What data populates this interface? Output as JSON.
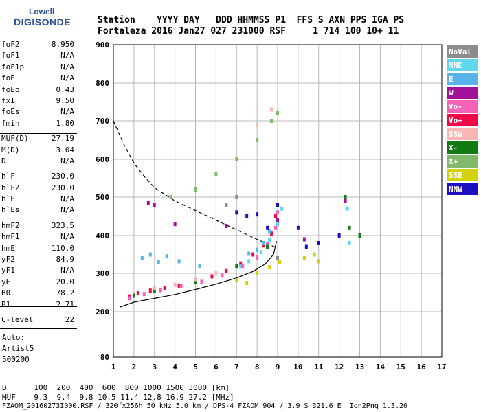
{
  "logo": {
    "line1": "Lowell",
    "line2": "DIGISONDE"
  },
  "header": {
    "line1": "Station    YYYY DAY   DDD HHMMSS P1  FFS S AXN PPS IGA PS",
    "line2": "Fortaleza 2016 Jan27 027 231000 RSF     1 714 100 10+ 11"
  },
  "params": [
    {
      "k": "foF2",
      "v": "8.950"
    },
    {
      "k": "foF1",
      "v": "N/A"
    },
    {
      "k": "foF1p",
      "v": "N/A"
    },
    {
      "k": "foE",
      "v": "N/A"
    },
    {
      "k": "foEp",
      "v": "0.43"
    },
    {
      "k": "fxI",
      "v": "9.50"
    },
    {
      "k": "foEs",
      "v": "N/A"
    },
    {
      "k": "fmin",
      "v": "1.80"
    },
    {
      "k": "MUF(D)",
      "v": "27.19"
    },
    {
      "k": "M(D)",
      "v": "3.04"
    },
    {
      "k": "D",
      "v": "N/A"
    },
    {
      "k": "h`F",
      "v": "230.0"
    },
    {
      "k": "h`F2",
      "v": "230.0"
    },
    {
      "k": "h`E",
      "v": "N/A"
    },
    {
      "k": "h`Es",
      "v": "N/A"
    },
    {
      "k": "hmF2",
      "v": "323.5"
    },
    {
      "k": "hmF1",
      "v": "N/A"
    },
    {
      "k": "hmE",
      "v": "110.0"
    },
    {
      "k": "yF2",
      "v": "84.9"
    },
    {
      "k": "yF1",
      "v": "N/A"
    },
    {
      "k": "yE",
      "v": "20.0"
    },
    {
      "k": "B0",
      "v": "78.2"
    },
    {
      "k": "B1",
      "v": "2.71"
    },
    {
      "k": "C-level",
      "v": "22"
    }
  ],
  "auto": [
    "Auto:",
    "Artist5",
    "500200"
  ],
  "footer": {
    "d_line": "D      100  200  400  600  800 1000 1500 3000 [km]",
    "muf_line": "MUF    9.3  9.4  9.8 10.5 11.4 12.8 16.9 27.2 [MHz]",
    "file_line": "FZAOM_20160273I000.RSF / 320fx256h 50 kHz 5.0 km / DPS-4 FZAOM 904 / 3.9 S 321.6 E  Ion2Png 1.3.20"
  },
  "legend": [
    {
      "label": "NoVal",
      "color": "#8c8c8c"
    },
    {
      "label": "NNE",
      "color": "#5fd8ec"
    },
    {
      "label": "E",
      "color": "#56b4ea"
    },
    {
      "label": "W",
      "color": "#a3119a"
    },
    {
      "label": "Vo-",
      "color": "#f562b8"
    },
    {
      "label": "Vo+",
      "color": "#ee0a4a"
    },
    {
      "label": "SSW",
      "color": "#fab5b5"
    },
    {
      "label": "X-",
      "color": "#127a12"
    },
    {
      "label": "X+",
      "color": "#82b86a"
    },
    {
      "label": "SSE",
      "color": "#d2d20e"
    },
    {
      "label": "NNW",
      "color": "#1c10c2"
    }
  ],
  "chart_data": {
    "type": "scatter",
    "xlim": [
      1,
      17
    ],
    "ylim": [
      80,
      900
    ],
    "x_ticks": [
      1,
      2,
      3,
      4,
      5,
      6,
      7,
      8,
      9,
      10,
      11,
      12,
      13,
      14,
      15,
      16,
      17
    ],
    "y_ticks": [
      80,
      200,
      300,
      400,
      500,
      600,
      700,
      800,
      900
    ],
    "grid": true,
    "legend_position": "right",
    "series": [
      {
        "name": "Vo+",
        "color": "#ee0a4a",
        "points": [
          [
            1.8,
            240
          ],
          [
            2.2,
            248
          ],
          [
            2.8,
            255
          ],
          [
            3.5,
            262
          ],
          [
            4.2,
            268
          ],
          [
            5,
            278
          ],
          [
            5.8,
            292
          ],
          [
            6.5,
            306
          ],
          [
            7.2,
            326
          ],
          [
            7.8,
            350
          ],
          [
            8.3,
            374
          ],
          [
            8.7,
            405
          ],
          [
            8.9,
            450
          ],
          [
            9.0,
            480
          ]
        ]
      },
      {
        "name": "NNE",
        "color": "#5fd8ec",
        "points": [
          [
            7.2,
            318
          ],
          [
            7.6,
            332
          ],
          [
            8.2,
            356
          ],
          [
            8.6,
            388
          ],
          [
            9.0,
            430
          ],
          [
            9.2,
            470
          ],
          [
            12.4,
            470
          ],
          [
            12.5,
            380
          ]
        ]
      },
      {
        "name": "E",
        "color": "#56b4ea",
        "points": [
          [
            2.4,
            340
          ],
          [
            2.8,
            350
          ],
          [
            3.2,
            330
          ],
          [
            3.6,
            345
          ],
          [
            4.2,
            332
          ],
          [
            5.2,
            320
          ],
          [
            7.6,
            352
          ],
          [
            8.0,
            362
          ],
          [
            8.3,
            380
          ],
          [
            8.6,
            410
          ]
        ]
      },
      {
        "name": "Vo-",
        "color": "#f562b8",
        "points": [
          [
            1.8,
            235
          ],
          [
            2.5,
            246
          ],
          [
            3.3,
            256
          ],
          [
            4.3,
            266
          ],
          [
            5.3,
            278
          ],
          [
            6.3,
            294
          ],
          [
            7.3,
            318
          ],
          [
            8.0,
            342
          ],
          [
            8.5,
            378
          ],
          [
            8.9,
            420
          ],
          [
            9.0,
            460
          ]
        ]
      },
      {
        "name": "W",
        "color": "#a3119a",
        "points": [
          [
            2.7,
            485
          ],
          [
            3.0,
            480
          ],
          [
            4.0,
            430
          ],
          [
            6.5,
            425
          ],
          [
            9.0,
            440
          ],
          [
            10.3,
            390
          ],
          [
            12.3,
            490
          ]
        ]
      },
      {
        "name": "X-",
        "color": "#127a12",
        "points": [
          [
            2.0,
            242
          ],
          [
            3.0,
            255
          ],
          [
            5.0,
            278
          ],
          [
            7.0,
            318
          ],
          [
            8.5,
            370
          ],
          [
            12.5,
            420
          ],
          [
            12.3,
            500
          ],
          [
            13.0,
            400
          ]
        ]
      },
      {
        "name": "X+",
        "color": "#82b86a",
        "points": [
          [
            3.8,
            500
          ],
          [
            5.0,
            520
          ],
          [
            6.0,
            560
          ],
          [
            7.0,
            600
          ],
          [
            8.0,
            650
          ],
          [
            8.7,
            700
          ],
          [
            9.0,
            720
          ]
        ]
      },
      {
        "name": "SSE",
        "color": "#d2d20e",
        "points": [
          [
            7.0,
            282
          ],
          [
            7.5,
            275
          ],
          [
            8.0,
            300
          ],
          [
            8.6,
            316
          ],
          [
            9.1,
            330
          ],
          [
            10.3,
            340
          ],
          [
            10.8,
            350
          ],
          [
            11.0,
            332
          ]
        ]
      },
      {
        "name": "SSW",
        "color": "#fab5b5",
        "points": [
          [
            3.0,
            262
          ],
          [
            4.0,
            270
          ],
          [
            5.0,
            285
          ],
          [
            6.0,
            300
          ],
          [
            8.0,
            690
          ],
          [
            8.7,
            730
          ]
        ]
      },
      {
        "name": "NNW",
        "color": "#1c10c2",
        "points": [
          [
            7.0,
            460
          ],
          [
            7.5,
            450
          ],
          [
            8.0,
            455
          ],
          [
            8.5,
            420
          ],
          [
            9.0,
            480
          ],
          [
            10.0,
            420
          ],
          [
            10.4,
            370
          ],
          [
            11.0,
            380
          ],
          [
            12.0,
            400
          ]
        ]
      },
      {
        "name": "NoVal",
        "color": "#8c8c8c",
        "points": [
          [
            6.5,
            480
          ],
          [
            7.0,
            500
          ],
          [
            9.0,
            340
          ]
        ]
      }
    ],
    "curves": [
      {
        "name": "profile",
        "style": "solid",
        "points": [
          [
            1.3,
            212
          ],
          [
            2,
            225
          ],
          [
            3,
            235
          ],
          [
            4,
            245
          ],
          [
            5,
            258
          ],
          [
            6,
            272
          ],
          [
            7,
            288
          ],
          [
            7.8,
            305
          ],
          [
            8.4,
            325
          ],
          [
            8.8,
            350
          ],
          [
            8.95,
            385
          ]
        ]
      },
      {
        "name": "muf",
        "style": "dashed",
        "points": [
          [
            1,
            700
          ],
          [
            1.5,
            640
          ],
          [
            2,
            590
          ],
          [
            2.5,
            555
          ],
          [
            3,
            525
          ],
          [
            4,
            490
          ],
          [
            5,
            465
          ],
          [
            6,
            440
          ],
          [
            7,
            415
          ],
          [
            8,
            390
          ],
          [
            8.5,
            378
          ],
          [
            8.95,
            368
          ]
        ]
      }
    ]
  }
}
